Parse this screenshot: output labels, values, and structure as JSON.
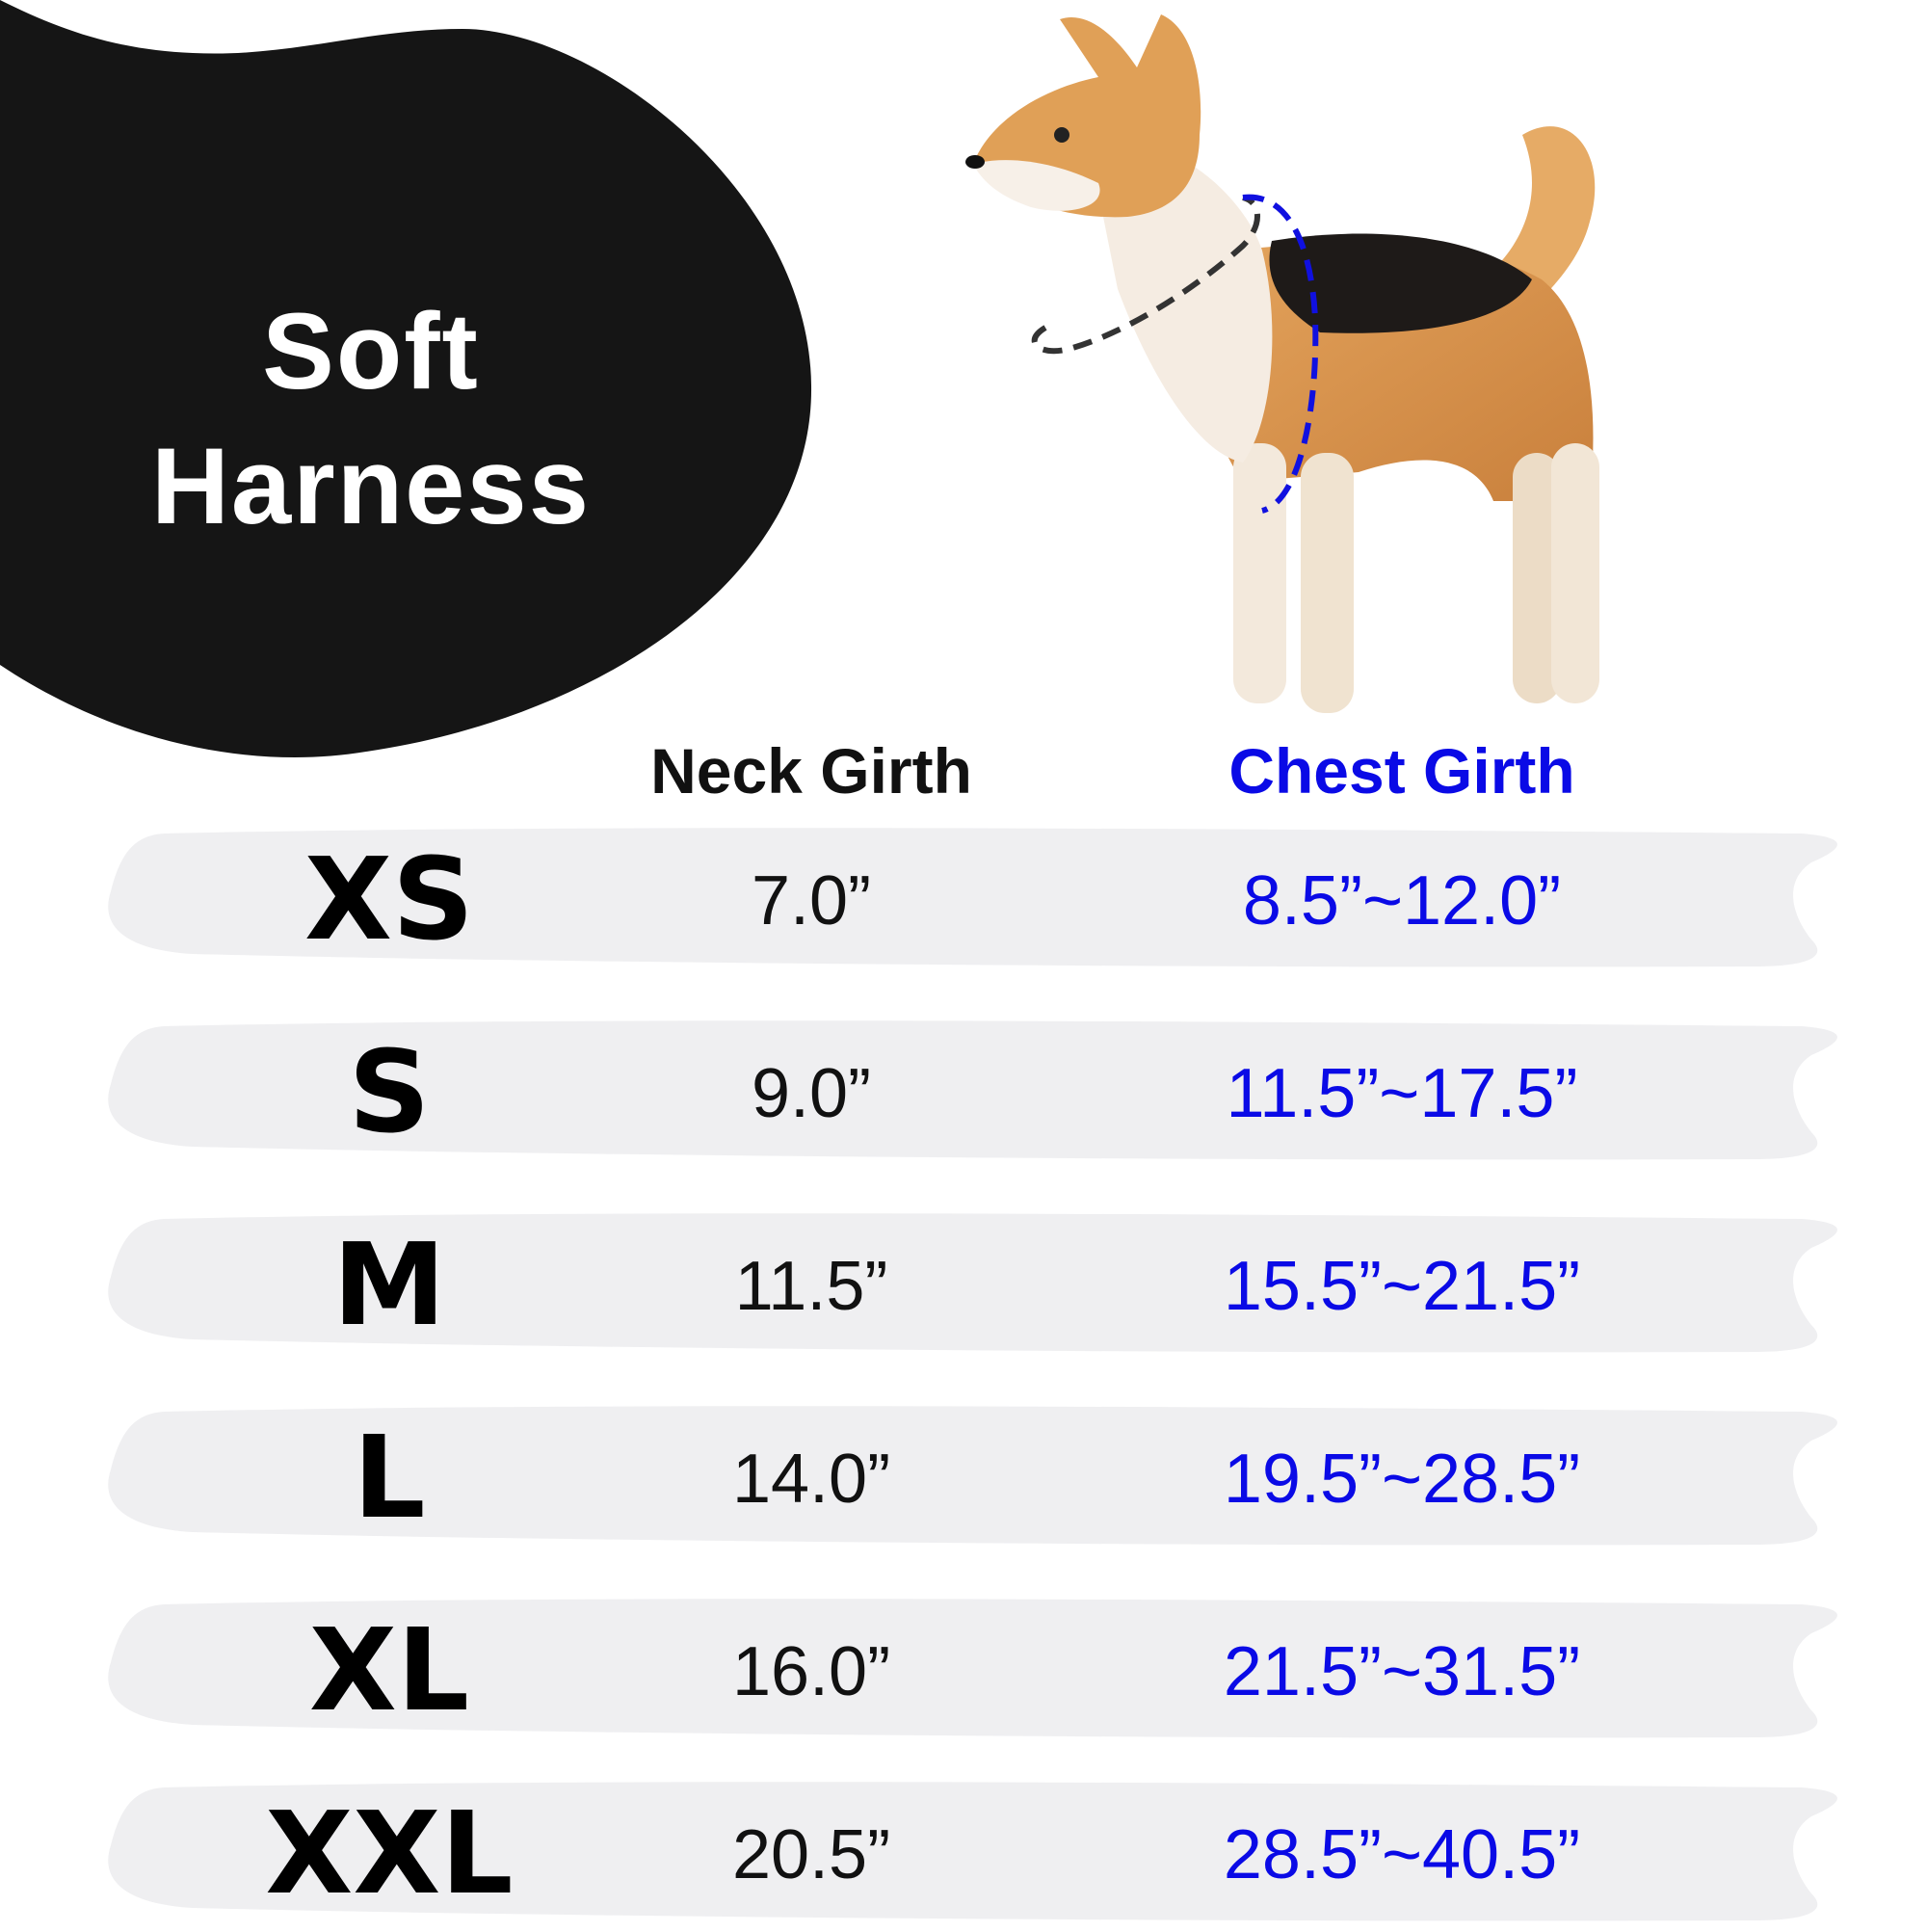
{
  "title": {
    "line1": "Soft",
    "line2": "Harness"
  },
  "columns": {
    "neck": "Neck Girth",
    "chest": "Chest Girth"
  },
  "colors": {
    "blob": "#151515",
    "row_bg": "#efeff1",
    "chest_text": "#0a0ae6",
    "neck_text": "#111111"
  },
  "image": {
    "subject": "shiba-inu-dog",
    "neck_measure_line": "black-dashed",
    "chest_measure_line": "blue-dashed"
  },
  "rows": [
    {
      "size": "XS",
      "neck": "7.0”",
      "chest": "8.5”~12.0”"
    },
    {
      "size": "S",
      "neck": "9.0”",
      "chest": "11.5”~17.5”"
    },
    {
      "size": "M",
      "neck": "11.5”",
      "chest": "15.5”~21.5”"
    },
    {
      "size": "L",
      "neck": "14.0”",
      "chest": "19.5”~28.5”"
    },
    {
      "size": "XL",
      "neck": "16.0”",
      "chest": "21.5”~31.5”"
    },
    {
      "size": "XXL",
      "neck": "20.5”",
      "chest": "28.5”~40.5”"
    }
  ]
}
